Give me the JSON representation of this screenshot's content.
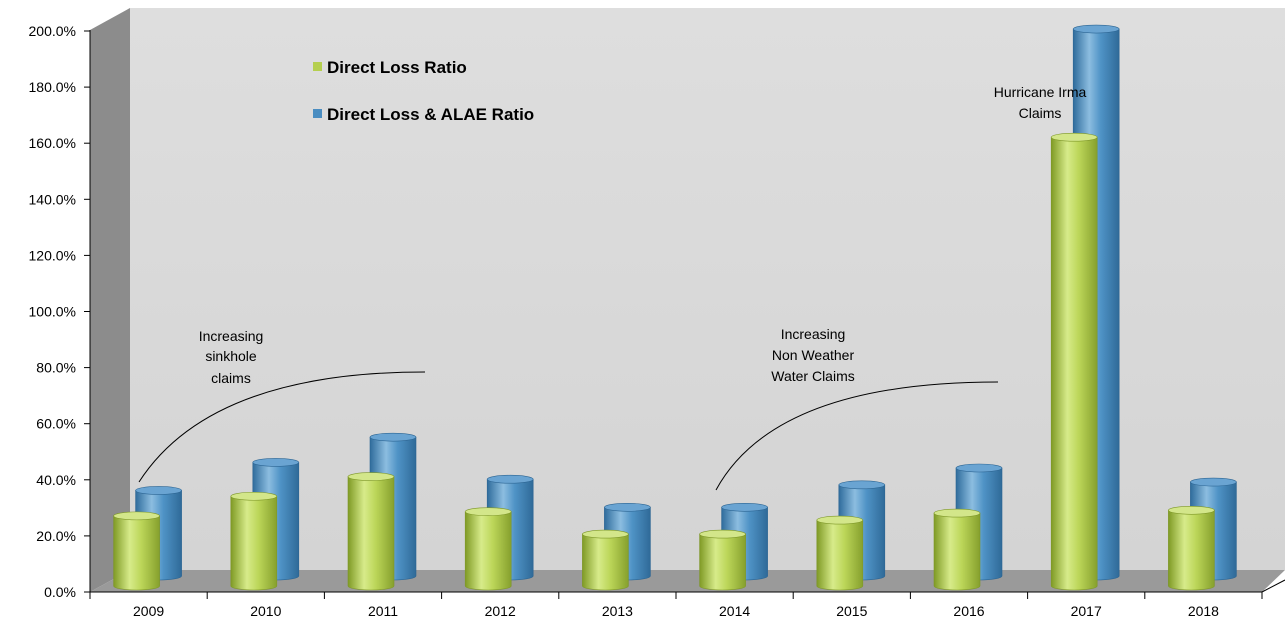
{
  "chart_data": {
    "type": "bar",
    "categories": [
      "2009",
      "2010",
      "2011",
      "2012",
      "2013",
      "2014",
      "2015",
      "2016",
      "2017",
      "2018"
    ],
    "series": [
      {
        "name": "Direct Loss Ratio",
        "values": [
          25.0,
          32.0,
          39.0,
          26.5,
          18.5,
          18.5,
          23.5,
          26.0,
          160.0,
          27.0
        ],
        "color": "#b5cf4f"
      },
      {
        "name": "Direct Loss & ALAE Ratio",
        "values": [
          30.5,
          40.5,
          49.5,
          34.5,
          24.5,
          24.5,
          32.5,
          38.5,
          195.0,
          33.5
        ],
        "color": "#4a8dc1"
      }
    ],
    "y_ticks": [
      "0.0%",
      "20.0%",
      "40.0%",
      "60.0%",
      "80.0%",
      "100.0%",
      "120.0%",
      "140.0%",
      "160.0%",
      "180.0%",
      "200.0%"
    ],
    "ylim": [
      0,
      200
    ],
    "legend_position": "top-left",
    "annotations": [
      {
        "lines": [
          "Increasing",
          "sinkhole",
          "claims"
        ]
      },
      {
        "lines": [
          "Increasing",
          "Non Weather",
          "Water Claims"
        ]
      },
      {
        "lines": [
          "Hurricane Irma",
          "Claims"
        ]
      }
    ]
  }
}
